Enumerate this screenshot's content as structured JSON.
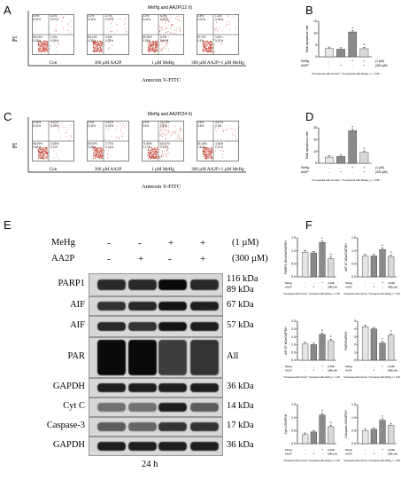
{
  "panels": {
    "A": {
      "letter": "A",
      "title": "MeHg and AA2P(12 h)",
      "ylabel": "PI",
      "xlabel": "Annexin V-FITC",
      "plots": [
        {
          "label": "Con",
          "tl": "0.5%\n0.02%",
          "tr": "5.3%\n0.07%",
          "bl": "96.23%\n0.05%",
          "br": "1.0%\n0.05%"
        },
        {
          "label": "300 µM AA2P",
          "tl": "0.2%\n0.04%",
          "tr": "3.7%\n0.07%",
          "bl": "96.14%\n0.05%",
          "br": "0.6%\n0.05%"
        },
        {
          "label": "1 µM MeHg",
          "tl": "2.2%\n0.04%",
          "tr": "6.5%\n0.25%",
          "bl": "89.35%\n0.35%",
          "br": "5.7%\n0.01%"
        },
        {
          "label": "300 µM AA2P+1 µM MeHg",
          "tl": "0.4%\n0.02%",
          "tr": "1.2%\n0.05%",
          "bl": "97.4%\n0.1%",
          "br": "0.5%\n0.02%"
        }
      ]
    },
    "B": {
      "letter": "B",
      "ylabel": "Total apoptosis rate",
      "treat_labels": [
        "MeHg",
        "AA2P"
      ],
      "conc": [
        "(1 µM)",
        "(300 µM)"
      ],
      "signs": [
        [
          "-",
          "-",
          "+",
          "+"
        ],
        [
          "-",
          "+",
          "-",
          "+"
        ]
      ],
      "footnote": "*Compared with Control, ^Compared with MeHg, p < 0.05"
    },
    "C": {
      "letter": "C",
      "title": "MeHg and AA2P(24 h)",
      "ylabel": "PI",
      "xlabel": "Annexin V-FITC",
      "plots": [
        {
          "label": "Con",
          "tl": "0.25%\n0.01%",
          "tr": "4.67%\n0.04%",
          "bl": "96.45%\n0.06%",
          "br": "0.63%\n0.1%"
        },
        {
          "label": "300 µM AA2P",
          "tl": "0.3%\n0.03%",
          "tr": "3.42%\n0.04%",
          "bl": "95.00%\n0.09%",
          "br": "2.73%\n0.14%"
        },
        {
          "label": "1 µM MeHg",
          "tl": "0.9%\n0.5%",
          "tr": "11.70%\n0.4%",
          "bl": "71.85%\n2.17%",
          "br": "16.47%\n2.41%"
        },
        {
          "label": "300 µM AA2P+1 µM MeHg",
          "tl": "0.5%\n0.5%",
          "tr": "4.67%\n0.1%",
          "bl": "84.18%\n1.44%",
          "br": "4.36%\n1.21%"
        }
      ]
    },
    "D": {
      "letter": "D",
      "ylabel": "Total apoptosis rate",
      "treat_labels": [
        "MeHg",
        "AA2P"
      ],
      "conc": [
        "(1 µM)",
        "(300 µM)"
      ],
      "signs": [
        [
          "-",
          "-",
          "+",
          "+"
        ],
        [
          "-",
          "+",
          "-",
          "+"
        ]
      ],
      "footnote": "*Compared with Control, ^Compared with MeHg, p < 0.05"
    },
    "E": {
      "letter": "E",
      "treatments": [
        {
          "name": "MeHg",
          "signs": [
            "-",
            "-",
            "+",
            "+"
          ],
          "conc": "(1 µM)"
        },
        {
          "name": "AA2P",
          "signs": [
            "-",
            "+",
            "-",
            "+"
          ],
          "conc": "(300 µM)"
        }
      ],
      "rows": [
        {
          "label": "PARP1",
          "kda": "116 kDa",
          "kda2": "89 kDa"
        },
        {
          "label": "AIF",
          "kda": "67 kDa"
        },
        {
          "label": "AIF",
          "kda": "57 kDa"
        },
        {
          "label": "PAR",
          "kda": "All"
        },
        {
          "label": "GAPDH",
          "kda": "36 kDa"
        },
        {
          "label": "Cyt C",
          "kda": "14 kDa"
        },
        {
          "label": "Caspase-3",
          "kda": "17 kDa"
        },
        {
          "label": "GAPDH",
          "kda": "36 kDa"
        }
      ],
      "time": "24 h"
    },
    "F": {
      "letter": "F",
      "treat_labels": [
        "MeHg",
        "AA2P"
      ],
      "conc": [
        "(1 µM)",
        "(300 µM)"
      ],
      "footnote": "*Compared with Control, ^Compared with MeHg, p < 0.05",
      "plots": [
        {
          "ylabel": "PARP1 89 kDa/GAPDH"
        },
        {
          "ylabel": "AIF 67 kDa/GAPDH"
        },
        {
          "ylabel": "AIF 57 kDa/GAPDH"
        },
        {
          "ylabel": "PAR/GAPDH"
        },
        {
          "ylabel": "Cyt C/GAPDH"
        },
        {
          "ylabel": "Caspase-3/GAPDH"
        }
      ]
    }
  },
  "chart_data": [
    {
      "type": "bar",
      "panel": "B",
      "categories": [
        "Con",
        "AA2P",
        "MeHg",
        "MeHg+AA2P"
      ],
      "values": [
        3.5,
        3.2,
        10.5,
        3.4
      ],
      "ylabel": "Total apoptosis rate",
      "ylim": [
        0,
        15
      ],
      "yticks": [
        "0",
        "5",
        "10",
        "15"
      ],
      "markers": [
        "",
        "",
        "*",
        "^"
      ]
    },
    {
      "type": "bar",
      "panel": "D",
      "categories": [
        "Con",
        "AA2P",
        "MeHg",
        "MeHg+AA2P"
      ],
      "values": [
        5.2,
        5.8,
        27.5,
        9.2
      ],
      "ylabel": "Total apoptosis rate",
      "ylim": [
        0,
        30
      ],
      "yticks": [
        "0",
        "10",
        "20",
        "30"
      ],
      "markers": [
        "",
        "",
        "*",
        "^"
      ]
    },
    {
      "type": "bar",
      "panel": "F1",
      "categories": [
        "Con",
        "AA2P",
        "MeHg",
        "MeHg+AA2P"
      ],
      "values": [
        0.95,
        0.92,
        1.32,
        0.7
      ],
      "ylabel": "PARP1 89 kDa/GAPDH",
      "ylim": [
        0,
        1.5
      ],
      "yticks": [
        "0.0",
        "0.5",
        "1.0",
        "1.5"
      ],
      "markers": [
        "",
        "",
        "*",
        "^"
      ]
    },
    {
      "type": "bar",
      "panel": "F2",
      "categories": [
        "Con",
        "AA2P",
        "MeHg",
        "MeHg+AA2P"
      ],
      "values": [
        0.8,
        0.8,
        1.05,
        0.78
      ],
      "ylabel": "AIF 67 kDa/GAPDH",
      "ylim": [
        0,
        1.5
      ],
      "yticks": [
        "0.0",
        "0.5",
        "1.0",
        "1.5"
      ],
      "markers": [
        "",
        "",
        "*",
        "^"
      ]
    },
    {
      "type": "bar",
      "panel": "F3",
      "categories": [
        "Con",
        "AA2P",
        "MeHg",
        "MeHg+AA2P"
      ],
      "values": [
        1.05,
        1.0,
        1.65,
        1.25
      ],
      "ylabel": "AIF 57 kDa/GAPDH",
      "ylim": [
        0,
        2.5
      ],
      "yticks": [
        "0.0",
        "0.5",
        "1.0",
        "1.5",
        "2.0",
        "2.5"
      ],
      "markers": [
        "",
        "",
        "*",
        "^"
      ]
    },
    {
      "type": "bar",
      "panel": "F4",
      "categories": [
        "Con",
        "AA2P",
        "MeHg",
        "MeHg+AA2P"
      ],
      "values": [
        4.3,
        4.0,
        2.2,
        3.2
      ],
      "ylabel": "PAR/GAPDH",
      "ylim": [
        0,
        5
      ],
      "yticks": [
        "0",
        "1",
        "2",
        "3",
        "4",
        "5"
      ],
      "markers": [
        "",
        "",
        "*",
        "^"
      ]
    },
    {
      "type": "bar",
      "panel": "F5",
      "categories": [
        "Con",
        "AA2P",
        "MeHg",
        "MeHg+AA2P"
      ],
      "values": [
        0.35,
        0.45,
        1.1,
        0.65
      ],
      "ylabel": "Cyt C/GAPDH",
      "ylim": [
        0,
        1.5
      ],
      "yticks": [
        "0.0",
        "0.5",
        "1.0",
        "1.5"
      ],
      "markers": [
        "",
        "",
        "*",
        "^"
      ]
    },
    {
      "type": "bar",
      "panel": "F6",
      "categories": [
        "Con",
        "AA2P",
        "MeHg",
        "MeHg+AA2P"
      ],
      "values": [
        0.5,
        0.55,
        0.9,
        0.7
      ],
      "ylabel": "Caspase-3/GAPDH",
      "ylim": [
        0,
        1.5
      ],
      "yticks": [
        "0.0",
        "0.5",
        "1.0",
        "1.5"
      ],
      "markers": [
        "",
        "",
        "*",
        ""
      ]
    }
  ],
  "colors": {
    "bar_con": "#e6e6e6",
    "bar_aa2p": "#8a8a8a",
    "bar_mehg": "#8a8a8a",
    "bar_combo": "#d9d9d9",
    "dot": "#c0392b"
  }
}
